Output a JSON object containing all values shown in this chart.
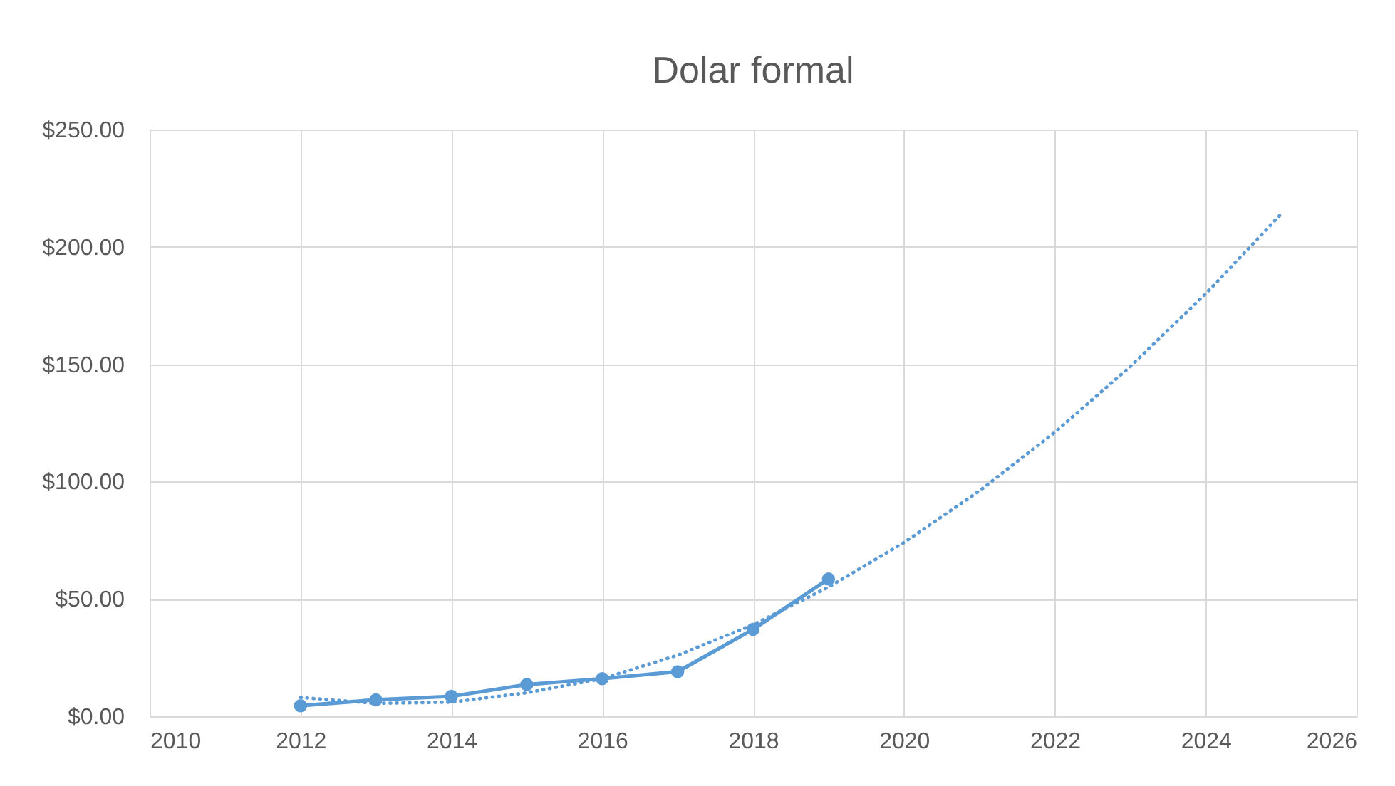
{
  "chart_data": {
    "type": "line",
    "title": "Dolar formal",
    "xlim": [
      2010,
      2026
    ],
    "xticks": [
      2010,
      2012,
      2014,
      2016,
      2018,
      2020,
      2022,
      2024,
      2026
    ],
    "ylim": [
      0,
      250
    ],
    "yticks": [
      {
        "value": 0,
        "label": "$0.00"
      },
      {
        "value": 50,
        "label": "$50.00"
      },
      {
        "value": 100,
        "label": "$100.00"
      },
      {
        "value": 150,
        "label": "$150.00"
      },
      {
        "value": 200,
        "label": "$200.00"
      },
      {
        "value": 250,
        "label": "$250.00"
      }
    ],
    "grid": true,
    "marker": "circle",
    "line_style": "solid",
    "series": [
      {
        "color": "#5b9bd5",
        "x": [
          2012,
          2013,
          2014,
          2015,
          2016,
          2017,
          2018,
          2019
        ],
        "values": [
          4.5,
          7,
          8.5,
          13.5,
          16,
          19,
          37,
          58.5
        ]
      },
      {
        "type": "line",
        "color": "#5b9bd5",
        "marker": "none",
        "line_style": "dotted",
        "x": [
          2012,
          2013,
          2014,
          2015,
          2016,
          2017,
          2018,
          2019,
          2020,
          2021,
          2022,
          2023,
          2024,
          2025
        ],
        "values": [
          8,
          5.5,
          6,
          10,
          16,
          26,
          39,
          55,
          74,
          96,
          121,
          149,
          180,
          214
        ]
      }
    ]
  }
}
